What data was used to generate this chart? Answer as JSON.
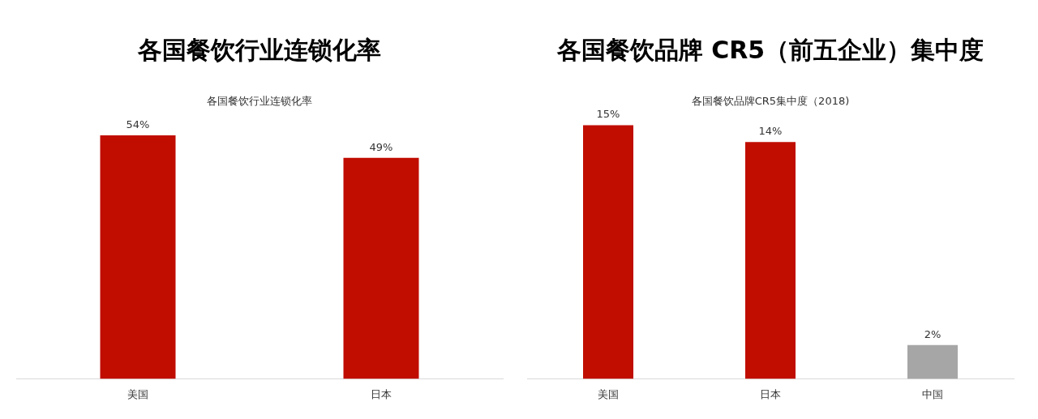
{
  "chart_data": [
    {
      "type": "bar",
      "title": "各国餐饮行业连锁化率",
      "subtitle": "各国餐饮行业连锁化率",
      "categories": [
        "美国",
        "日本"
      ],
      "values": [
        54,
        49
      ],
      "value_labels": [
        "54%",
        "49%"
      ],
      "colors": [
        "#c00d00",
        "#c00d00"
      ],
      "tick_labels": "x",
      "grid": false,
      "legend": false
    },
    {
      "type": "bar",
      "title": "各国餐饮品牌 CR5（前五企业）集中度",
      "subtitle": "各国餐饮品牌CR5集中度（2018)",
      "categories": [
        "美国",
        "日本",
        "中国"
      ],
      "values": [
        15,
        14,
        2
      ],
      "value_labels": [
        "15%",
        "14%",
        "2%"
      ],
      "colors": [
        "#c00d00",
        "#c00d00",
        "#a6a6a6"
      ],
      "tick_labels": "x",
      "grid": false,
      "legend": false
    }
  ]
}
